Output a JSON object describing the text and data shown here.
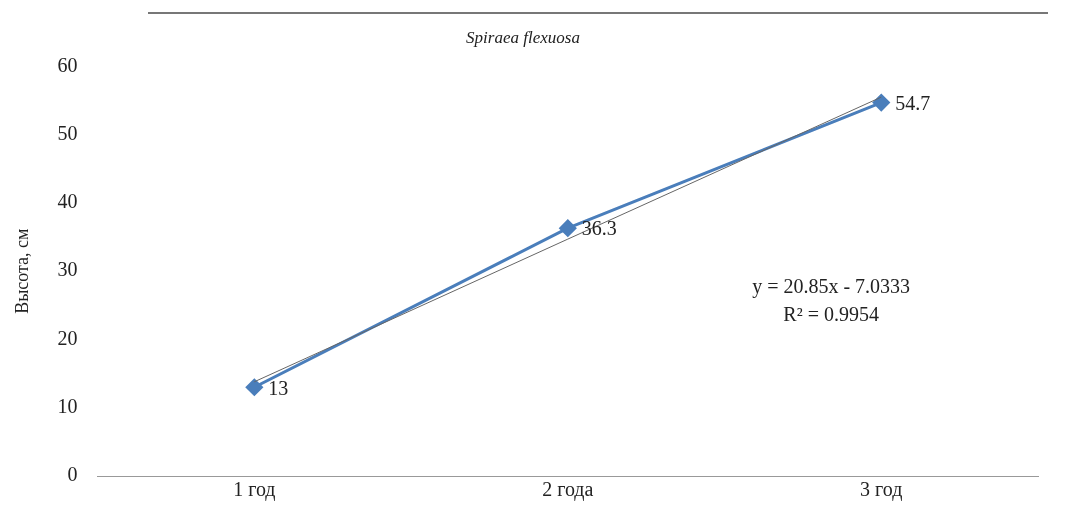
{
  "chart_data": {
    "type": "line",
    "title": "Spiraea flexuosa",
    "ylabel": "Высота, см",
    "categories": [
      "1 год",
      "2 года",
      "3 год"
    ],
    "series": [
      {
        "color": "#4a7ebb",
        "values": [
          13,
          36.3,
          54.7
        ],
        "value_labels": [
          "13",
          "36.3",
          "54.7"
        ],
        "marker": "diamond"
      },
      {
        "type": "line",
        "color": "#666666",
        "values": [
          13.8,
          34.7,
          55.5
        ],
        "marker": "none"
      }
    ],
    "ylim": [
      0,
      60
    ],
    "yticks": [
      0,
      10,
      20,
      30,
      40,
      50,
      60
    ],
    "grid": false,
    "legend": false,
    "annotations": [
      "y = 20.85x - 7.0333",
      "R² = 0.9954"
    ]
  }
}
